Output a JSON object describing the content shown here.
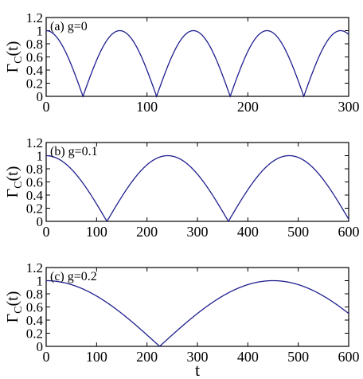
{
  "chart_data": [
    {
      "type": "line",
      "panel_label": "(a) g=0",
      "ylabel": "Γ_C(t)",
      "xlabel": "",
      "xlim": [
        0,
        300
      ],
      "ylim": [
        0,
        1.2
      ],
      "xticks": [
        0,
        100,
        200,
        300
      ],
      "yticks": [
        0,
        0.2,
        0.4,
        0.6,
        0.8,
        1,
        1.2
      ],
      "line_color": "#1f1f8f",
      "period": 73,
      "series": [
        {
          "x": [
            0,
            18,
            36,
            37,
            55,
            73,
            92,
            110,
            128,
            146,
            165,
            183,
            201,
            219,
            238,
            256,
            274,
            292,
            300
          ],
          "y": [
            1.0,
            0.71,
            0.02,
            0.0,
            0.71,
            1.0,
            0.71,
            0.0,
            0.71,
            1.0,
            0.71,
            0.0,
            0.71,
            1.0,
            0.71,
            0.0,
            0.71,
            1.0,
            0.93
          ]
        }
      ]
    },
    {
      "type": "line",
      "panel_label": "(b) g=0.1",
      "ylabel": "Γ_C(t)",
      "xlabel": "",
      "xlim": [
        0,
        600
      ],
      "ylim": [
        0,
        1.2
      ],
      "xticks": [
        0,
        100,
        200,
        300,
        400,
        500,
        600
      ],
      "yticks": [
        0,
        0.2,
        0.4,
        0.6,
        0.8,
        1,
        1.2
      ],
      "line_color": "#1f1f8f",
      "period": 241,
      "series": [
        {
          "x": [
            0,
            60,
            120,
            181,
            241,
            301,
            361,
            422,
            482,
            542,
            600
          ],
          "y": [
            1.0,
            0.71,
            0.0,
            0.71,
            1.0,
            0.71,
            0.0,
            0.71,
            1.0,
            0.71,
            0.02
          ]
        }
      ]
    },
    {
      "type": "line",
      "panel_label": "(c) g=0.2",
      "ylabel": "Γ_C(t)",
      "xlabel": "t",
      "xlim": [
        0,
        600
      ],
      "ylim": [
        0,
        1.2
      ],
      "xticks": [
        0,
        100,
        200,
        300,
        400,
        500,
        600
      ],
      "yticks": [
        0,
        0.2,
        0.4,
        0.6,
        0.8,
        1,
        1.2
      ],
      "line_color": "#1f1f8f",
      "period": 450,
      "series": [
        {
          "x": [
            0,
            112,
            225,
            337,
            450,
            562,
            600
          ],
          "y": [
            1.0,
            0.71,
            0.0,
            0.71,
            1.0,
            0.71,
            0.5
          ]
        }
      ]
    }
  ]
}
